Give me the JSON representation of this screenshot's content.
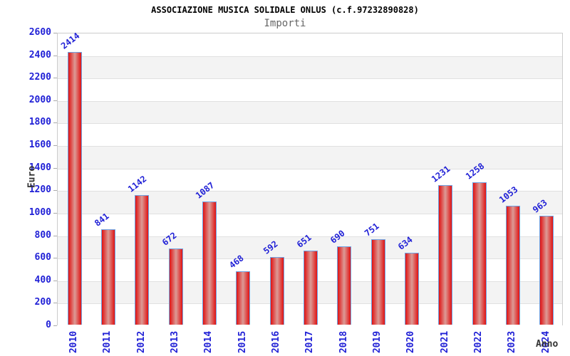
{
  "header": {
    "title": "ASSOCIAZIONE MUSICA SOLIDALE ONLUS (c.f.97232890828)",
    "subtitle": "Importi"
  },
  "chart_data": {
    "type": "bar",
    "title": "ASSOCIAZIONE MUSICA SOLIDALE ONLUS (c.f.97232890828)",
    "subtitle": "Importi",
    "xlabel": "Anno",
    "ylabel": "Euro",
    "categories": [
      "2010",
      "2011",
      "2012",
      "2013",
      "2014",
      "2015",
      "2016",
      "2017",
      "2018",
      "2019",
      "2020",
      "2021",
      "2022",
      "2023",
      "2024"
    ],
    "values": [
      2414,
      841,
      1142,
      672,
      1087,
      468,
      592,
      651,
      690,
      751,
      634,
      1231,
      1258,
      1053,
      963
    ],
    "ylim": [
      0,
      2600
    ],
    "ytick_step": 200,
    "grid": "horizontal-bands-alternating",
    "legend": "none",
    "colors": {
      "bar_fill_edge": "#e01212",
      "bar_fill_center": "#dc9b96",
      "bar_border": "#6fa3e3",
      "value_label": "#2121d6",
      "tick_label": "#2121d6",
      "band_gray": "#f3f3f3",
      "band_white": "#ffffff",
      "grid_line": "#e0e0e0",
      "plot_border": "#cccccc",
      "title_color": "#000000",
      "subtitle_color": "#666666",
      "axis_title_color": "#333333"
    }
  }
}
